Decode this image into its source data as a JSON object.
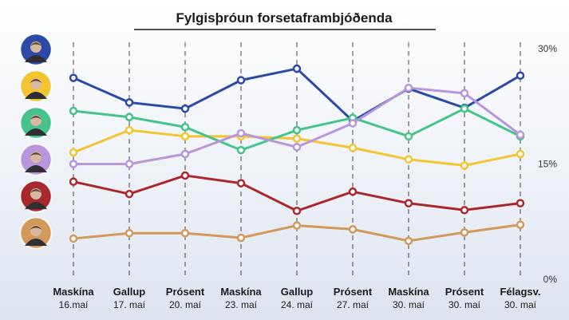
{
  "chart_data": {
    "type": "line",
    "title": "Fylgisþróun forsetaframbjóðenda",
    "categories": [
      {
        "pollster": "Maskína",
        "date": "16.maí"
      },
      {
        "pollster": "Gallup",
        "date": "17. maí"
      },
      {
        "pollster": "Prósent",
        "date": "20. maí"
      },
      {
        "pollster": "Maskína",
        "date": "23. maí"
      },
      {
        "pollster": "Gallup",
        "date": "24. maí"
      },
      {
        "pollster": "Prósent",
        "date": "27. maí"
      },
      {
        "pollster": "Maskína",
        "date": "30. maí"
      },
      {
        "pollster": "Prósent",
        "date": "30. maí"
      },
      {
        "pollster": "Félagsv.",
        "date": "30. maí"
      }
    ],
    "y_ticks": [
      {
        "value": 0,
        "label": "0%"
      },
      {
        "value": 15,
        "label": "15%"
      },
      {
        "value": 30,
        "label": "30%"
      }
    ],
    "ylim": [
      0,
      30
    ],
    "grid": "vertical dashed lines",
    "legend": "candidate photos on the left",
    "series": [
      {
        "color": "#2b4aa8",
        "avatar_bg": "#2b4aa8",
        "values": [
          26.2,
          23.0,
          22.2,
          25.9,
          27.4,
          20.6,
          24.8,
          22.3,
          26.5
        ]
      },
      {
        "color": "#f2c531",
        "avatar_bg": "#f2c531",
        "values": [
          16.5,
          19.4,
          18.6,
          18.6,
          18.3,
          17.1,
          15.6,
          14.8,
          16.3
        ]
      },
      {
        "color": "#46c28c",
        "avatar_bg": "#46c28c",
        "values": [
          21.9,
          21.1,
          19.8,
          16.8,
          19.4,
          21.0,
          18.6,
          22.2,
          18.6
        ]
      },
      {
        "color": "#b896dd",
        "avatar_bg": "#b896dd",
        "values": [
          15.0,
          15.0,
          16.3,
          19.0,
          17.2,
          20.3,
          24.9,
          24.2,
          18.8
        ]
      },
      {
        "color": "#a8282c",
        "avatar_bg": "#a8282c",
        "values": [
          12.7,
          11.1,
          13.5,
          12.5,
          8.9,
          11.4,
          9.9,
          9.0,
          9.9
        ]
      },
      {
        "color": "#d2995a",
        "avatar_bg": "#d2995a",
        "values": [
          5.3,
          6.0,
          6.0,
          5.4,
          7.0,
          6.5,
          5.0,
          6.1,
          7.1
        ]
      }
    ]
  }
}
